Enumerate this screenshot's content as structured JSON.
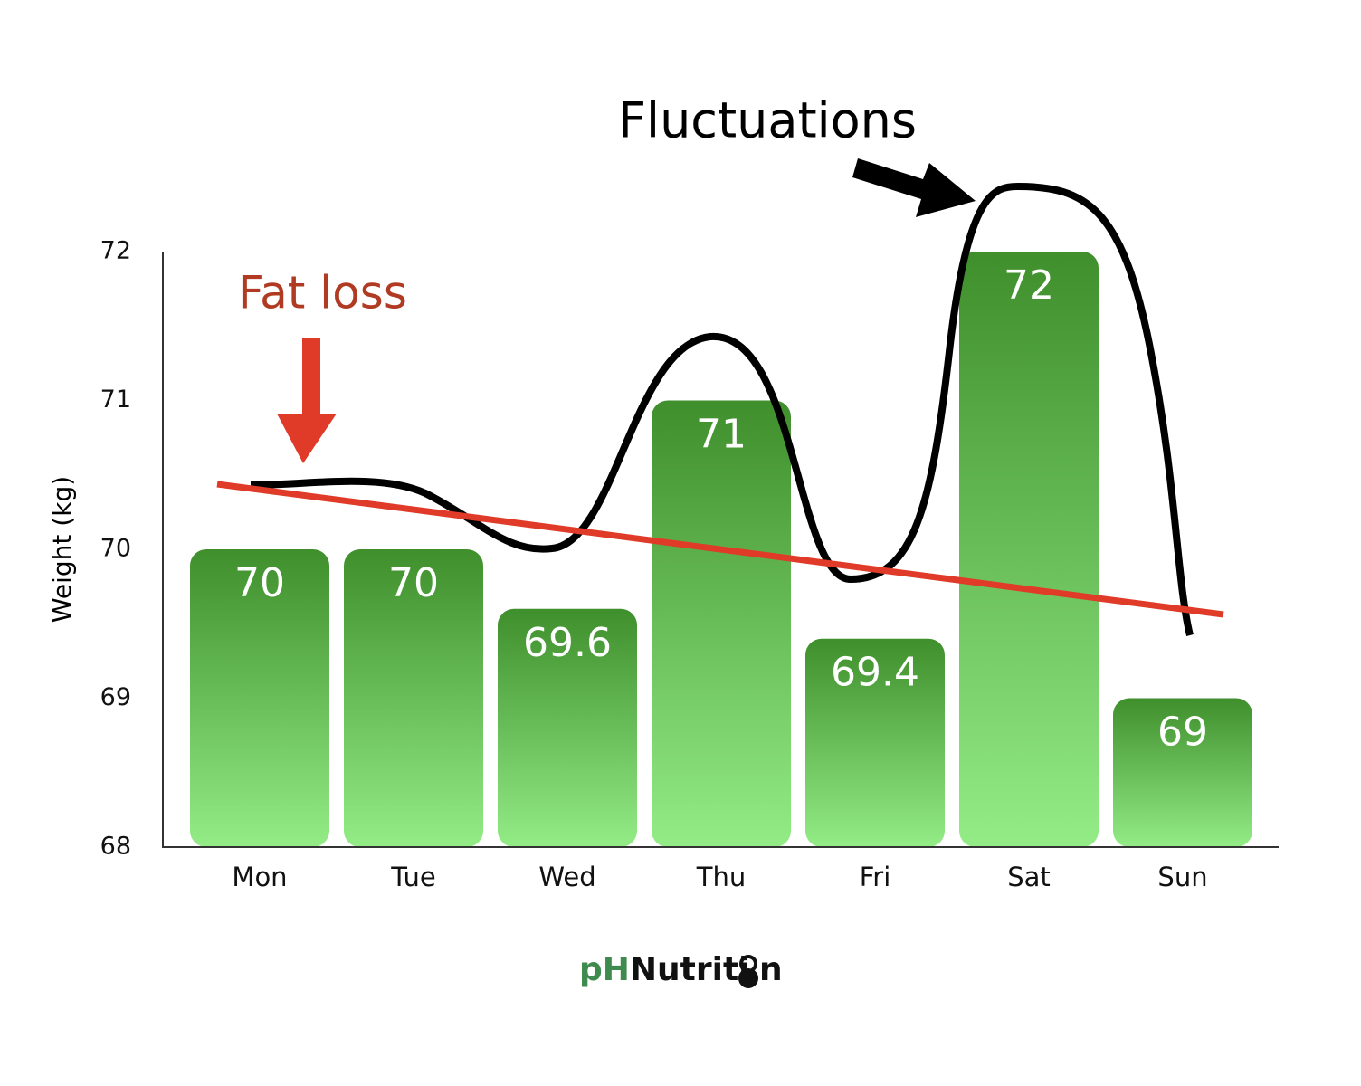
{
  "chart_data": {
    "type": "bar",
    "categories": [
      "Mon",
      "Tue",
      "Wed",
      "Thu",
      "Fri",
      "Sat",
      "Sun"
    ],
    "values": [
      70,
      70,
      69.6,
      71,
      69.4,
      72,
      69
    ],
    "ylim": [
      68,
      72
    ],
    "yticks": [
      68,
      69,
      70,
      71,
      72
    ],
    "y_label": "Weight (kg)",
    "annotations": [
      "Fat loss",
      "Fluctuations"
    ],
    "color": "#4a9a32",
    "grid": false
  },
  "brand": {
    "part1": "pH",
    "part2": "Nutriti",
    "part3": "n"
  }
}
